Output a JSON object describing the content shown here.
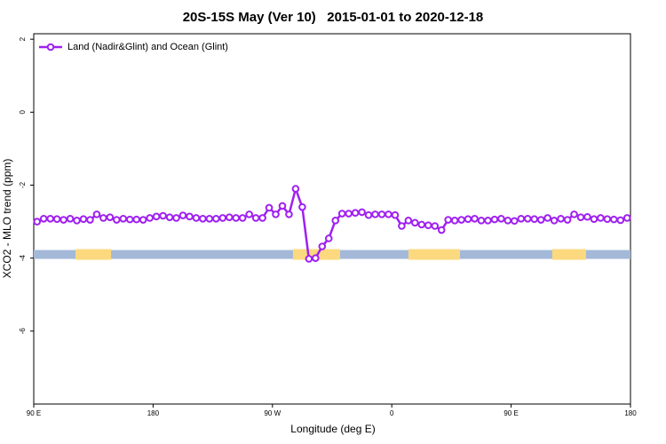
{
  "chart_data": {
    "type": "line",
    "title": "20S-15S May (Ver 10)   2015-01-01 to 2020-12-18",
    "x_label": "Longitude (deg E)",
    "y_label": "XCO2 - MLO trend (ppm)",
    "xlim": [
      90,
      540
    ],
    "ylim": [
      -8.0,
      2.15
    ],
    "xticks": [
      {
        "value": 90,
        "label": "90 E"
      },
      180,
      {
        "value": 270,
        "label": "90 W"
      },
      {
        "value": 360,
        "label": "0"
      },
      {
        "value": 450,
        "label": "90 E"
      },
      {
        "value": 540,
        "label": "180"
      }
    ],
    "yticks": [
      2,
      0,
      -2,
      -4,
      -6
    ],
    "legend": "top-left",
    "surface_band": {
      "y": -3.9,
      "ocean_color": "#a4b8d8",
      "land_color": "#fcd97e",
      "land": [
        [
          121.5,
          148.3
        ],
        [
          285.5,
          321
        ],
        [
          372.6,
          411.4
        ],
        [
          481,
          506.5
        ]
      ]
    },
    "x": [
      92.5,
      97.5,
      102.5,
      107.5,
      112.5,
      117.5,
      122.5,
      127.5,
      132.5,
      137.5,
      142.5,
      147.5,
      152.5,
      157.5,
      162.5,
      167.5,
      172.5,
      177.5,
      182.5,
      187.5,
      192.5,
      197.5,
      202.5,
      207.5,
      212.5,
      217.5,
      222.5,
      227.5,
      232.5,
      237.5,
      242.5,
      247.5,
      252.5,
      257.5,
      262.5,
      267.5,
      272.5,
      277.5,
      282.5,
      287.5,
      292.5,
      297.5,
      302.5,
      307.5,
      312.5,
      317.5,
      322.5,
      327.5,
      332.5,
      337.5,
      342.5,
      347.5,
      352.5,
      357.5,
      362.5,
      367.5,
      372.5,
      377.5,
      382.5,
      387.5,
      392.5,
      397.5,
      402.5,
      407.5,
      412.5,
      417.5,
      422.5,
      427.5,
      432.5,
      437.5,
      442.5,
      447.5,
      452.5,
      457.5,
      462.5,
      467.5,
      472.5,
      477.5,
      482.5,
      487.5,
      492.5,
      497.5,
      502.5,
      507.5,
      512.5,
      517.5,
      522.5,
      527.5,
      532.5,
      537.5
    ],
    "series": [
      {
        "name": "Land (Nadir&Glint) and Ocean (Glint)",
        "color": "#a020f0",
        "values": [
          -3.0,
          -2.92,
          -2.92,
          -2.93,
          -2.95,
          -2.92,
          -2.97,
          -2.93,
          -2.95,
          -2.8,
          -2.9,
          -2.88,
          -2.95,
          -2.92,
          -2.94,
          -2.94,
          -2.95,
          -2.9,
          -2.86,
          -2.84,
          -2.88,
          -2.9,
          -2.83,
          -2.86,
          -2.9,
          -2.92,
          -2.92,
          -2.92,
          -2.9,
          -2.88,
          -2.9,
          -2.9,
          -2.8,
          -2.9,
          -2.9,
          -2.62,
          -2.8,
          -2.57,
          -2.8,
          -2.1,
          -2.6,
          -4.02,
          -4.0,
          -3.68,
          -3.46,
          -2.97,
          -2.78,
          -2.78,
          -2.76,
          -2.74,
          -2.82,
          -2.8,
          -2.8,
          -2.8,
          -2.82,
          -3.12,
          -2.97,
          -3.03,
          -3.08,
          -3.1,
          -3.12,
          -3.23,
          -2.95,
          -2.97,
          -2.95,
          -2.93,
          -2.92,
          -2.97,
          -2.97,
          -2.94,
          -2.92,
          -2.97,
          -2.98,
          -2.92,
          -2.92,
          -2.93,
          -2.95,
          -2.9,
          -2.97,
          -2.92,
          -2.95,
          -2.8,
          -2.88,
          -2.87,
          -2.93,
          -2.9,
          -2.93,
          -2.94,
          -2.96,
          -2.9
        ]
      }
    ]
  }
}
